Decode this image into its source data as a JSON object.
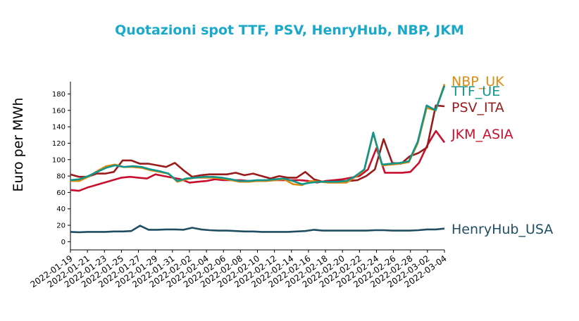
{
  "chart_data": {
    "type": "line",
    "title": "Quotazioni spot TTF, PSV, HenryHub, NBP, JKM",
    "ylabel": "Euro per MWh",
    "xlabel": "",
    "ylim": [
      -10,
      195
    ],
    "y_ticks": [
      0,
      20,
      40,
      60,
      80,
      100,
      120,
      140,
      160,
      180
    ],
    "x_ticks": [
      "2022-01-19",
      "2022-01-21",
      "2022-01-23",
      "2022-01-25",
      "2022-01-27",
      "2022-01-29",
      "2022-01-31",
      "2022-02-02",
      "2022-02-04",
      "2022-02-06",
      "2022-02-08",
      "2022-02-10",
      "2022-02-12",
      "2022-02-14",
      "2022-02-16",
      "2022-02-18",
      "2022-02-20",
      "2022-02-22",
      "2022-02-24",
      "2022-02-26",
      "2022-02-28",
      "2022-03-02",
      "2022-03-04"
    ],
    "x_start": "2022-01-19",
    "grid": false,
    "legend": "direct labels at line ends",
    "colors": {
      "title": "#1aa9c8",
      "NBP_UK": "#e08a10",
      "TTF_UE": "#10958a",
      "PSV_ITA": "#9a1b1b",
      "JKM_ASIA": "#c8102e",
      "HenryHub_USA": "#1f4e63"
    },
    "series": [
      {
        "name": "TTF_UE",
        "values": [
          75,
          76,
          80,
          85,
          90,
          93,
          91,
          92,
          91,
          88,
          86,
          83,
          74,
          77,
          78,
          79,
          79,
          78,
          76,
          74,
          74,
          75,
          75,
          76,
          77,
          74,
          70,
          72,
          73,
          73,
          73,
          74,
          80,
          88,
          133,
          94,
          95,
          96,
          98,
          122,
          166,
          160,
          190
        ]
      },
      {
        "name": "NBP_UK",
        "values": [
          74,
          74,
          79,
          86,
          92,
          94,
          91,
          91,
          90,
          87,
          85,
          83,
          73,
          76,
          78,
          78,
          78,
          77,
          75,
          73,
          73,
          74,
          74,
          75,
          76,
          70,
          69,
          74,
          73,
          72,
          72,
          72,
          79,
          87,
          132,
          93,
          94,
          95,
          97,
          120,
          163,
          160,
          192
        ]
      },
      {
        "name": "PSV_ITA",
        "values": [
          82,
          79,
          79,
          83,
          83,
          85,
          99,
          99,
          95,
          95,
          93,
          91,
          96,
          87,
          79,
          81,
          82,
          82,
          82,
          84,
          81,
          83,
          80,
          77,
          80,
          78,
          78,
          85,
          76,
          73,
          73,
          74,
          74,
          75,
          80,
          88,
          125,
          96,
          95,
          104,
          108,
          115,
          166,
          165
        ]
      },
      {
        "name": "JKM_ASIA",
        "values": [
          63,
          62,
          66,
          69,
          72,
          75,
          78,
          79,
          78,
          77,
          82,
          80,
          78,
          76,
          72,
          73,
          74,
          76,
          75,
          75,
          75,
          74,
          74,
          74,
          75,
          75,
          75,
          75,
          74,
          72,
          74,
          75,
          76,
          78,
          80,
          88,
          114,
          84,
          84,
          84,
          85,
          96,
          118,
          135,
          121
        ]
      },
      {
        "name": "HenryHub_USA",
        "values": [
          12,
          11.5,
          12,
          12,
          12,
          12.5,
          12.5,
          13,
          19.5,
          14.5,
          14.5,
          15,
          15,
          14.5,
          17,
          15,
          14,
          13.5,
          13.5,
          13,
          12.5,
          12.5,
          12,
          12,
          12,
          12,
          12.5,
          13,
          14.5,
          13.5,
          13.5,
          13.5,
          13.5,
          13.5,
          13.5,
          14,
          14,
          13.5,
          13.5,
          13.5,
          14,
          15,
          15,
          16
        ]
      }
    ]
  }
}
